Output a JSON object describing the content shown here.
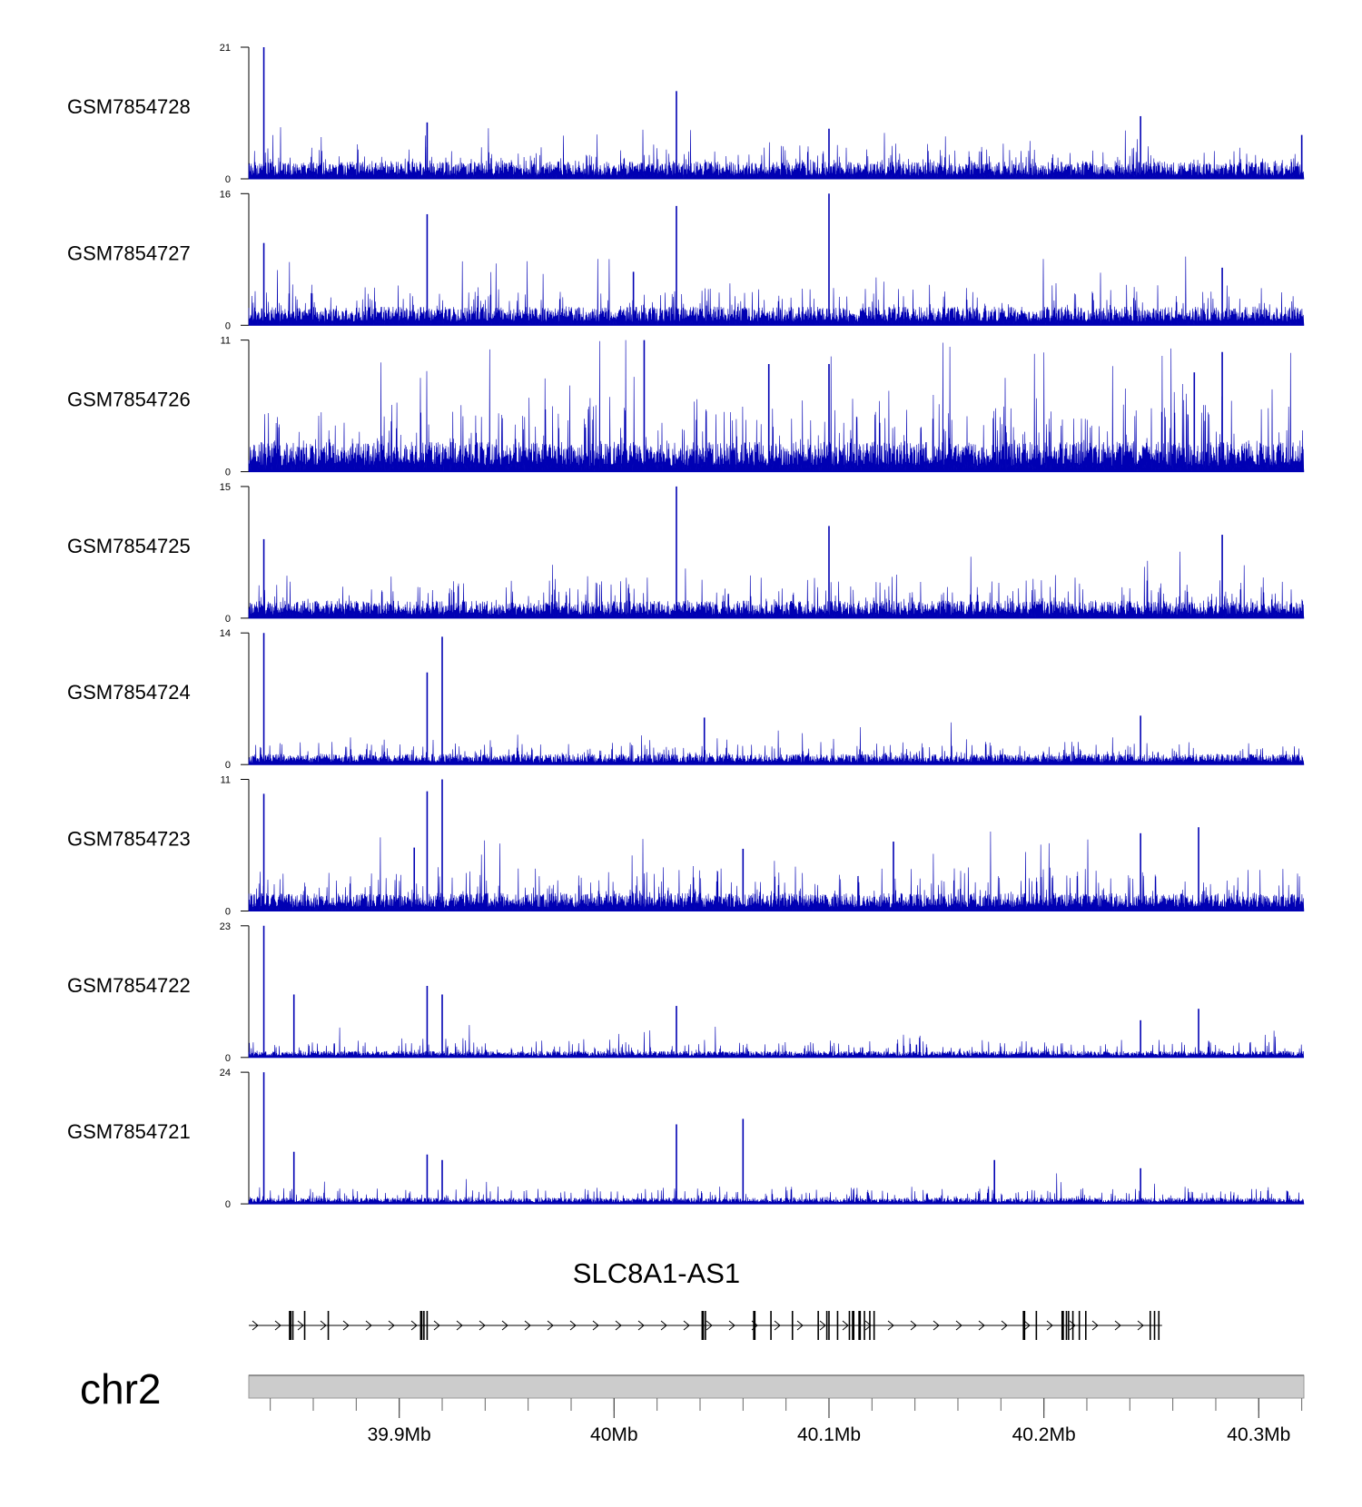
{
  "chart_data": {
    "type": "genome-browser-coverage",
    "chromosome": "chr2",
    "region": {
      "start_mb": 39.83,
      "end_mb": 40.321
    },
    "x_ticks": [
      {
        "value_mb": 39.9,
        "label": "39.9Mb"
      },
      {
        "value_mb": 40.0,
        "label": "40Mb"
      },
      {
        "value_mb": 40.1,
        "label": "40.1Mb"
      },
      {
        "value_mb": 40.2,
        "label": "40.2Mb"
      },
      {
        "value_mb": 40.3,
        "label": "40.3Mb"
      }
    ],
    "minor_tick_step_mb": 0.02,
    "series_color": "#0000B3",
    "tracks": [
      {
        "name": "GSM7854728",
        "ymin": 0,
        "ymax": 21,
        "ymin_label": "0",
        "ymax_label": "21",
        "baseline": 2.2,
        "noise": 3.0,
        "peaks": [
          [
            39.837,
            21
          ],
          [
            39.913,
            9
          ],
          [
            40.029,
            14
          ],
          [
            40.1,
            8
          ],
          [
            40.245,
            10
          ],
          [
            40.32,
            7
          ]
        ]
      },
      {
        "name": "GSM7854727",
        "ymin": 0,
        "ymax": 16,
        "ymin_label": "0",
        "ymax_label": "16",
        "baseline": 1.8,
        "noise": 3.0,
        "peaks": [
          [
            39.837,
            10
          ],
          [
            39.913,
            13.5
          ],
          [
            40.009,
            6.5
          ],
          [
            40.029,
            14.5
          ],
          [
            40.1,
            16
          ],
          [
            40.283,
            7
          ]
        ]
      },
      {
        "name": "GSM7854726",
        "ymin": 0,
        "ymax": 11,
        "ymin_label": "0",
        "ymax_label": "11",
        "baseline": 2.0,
        "noise": 4.2,
        "peaks": [
          [
            40.014,
            11
          ],
          [
            40.072,
            9
          ],
          [
            40.1,
            9
          ],
          [
            40.283,
            10
          ],
          [
            40.27,
            8.3
          ]
        ]
      },
      {
        "name": "GSM7854725",
        "ymin": 0,
        "ymax": 15,
        "ymin_label": "0",
        "ymax_label": "15",
        "baseline": 1.6,
        "noise": 3.0,
        "peaks": [
          [
            40.029,
            15
          ],
          [
            40.1,
            10.5
          ],
          [
            40.283,
            9.5
          ],
          [
            39.837,
            9
          ]
        ]
      },
      {
        "name": "GSM7854724",
        "ymin": 0,
        "ymax": 14,
        "ymin_label": "0",
        "ymax_label": "14",
        "baseline": 0.9,
        "noise": 1.6,
        "peaks": [
          [
            39.837,
            14
          ],
          [
            39.913,
            9.8
          ],
          [
            39.92,
            13.6
          ],
          [
            40.042,
            5
          ],
          [
            40.245,
            5.2
          ]
        ]
      },
      {
        "name": "GSM7854723",
        "ymin": 0,
        "ymax": 11,
        "ymin_label": "0",
        "ymax_label": "11",
        "baseline": 1.2,
        "noise": 2.4,
        "peaks": [
          [
            39.837,
            9.8
          ],
          [
            39.913,
            10
          ],
          [
            39.92,
            11
          ],
          [
            39.907,
            5.3
          ],
          [
            40.06,
            5.2
          ],
          [
            40.13,
            5.8
          ],
          [
            40.245,
            6.5
          ],
          [
            40.272,
            7
          ]
        ]
      },
      {
        "name": "GSM7854722",
        "ymin": 0,
        "ymax": 23,
        "ymin_label": "0",
        "ymax_label": "23",
        "baseline": 0.9,
        "noise": 2.2,
        "peaks": [
          [
            39.837,
            23
          ],
          [
            39.851,
            11
          ],
          [
            39.913,
            12.5
          ],
          [
            39.92,
            11
          ],
          [
            40.029,
            9
          ],
          [
            40.245,
            6.5
          ],
          [
            40.272,
            8.5
          ]
        ]
      },
      {
        "name": "GSM7854721",
        "ymin": 0,
        "ymax": 24,
        "ymin_label": "0",
        "ymax_label": "24",
        "baseline": 0.9,
        "noise": 2.2,
        "peaks": [
          [
            39.837,
            24
          ],
          [
            39.851,
            9.5
          ],
          [
            39.913,
            9
          ],
          [
            39.92,
            8
          ],
          [
            40.029,
            14.5
          ],
          [
            40.06,
            15.5
          ],
          [
            40.177,
            8
          ],
          [
            40.245,
            6.5
          ]
        ]
      }
    ],
    "gene": {
      "name": "SLC8A1-AS1",
      "start_mb": 39.83,
      "end_mb": 40.255,
      "strand": "+",
      "exons_mb": [
        39.849,
        39.8495,
        39.8505,
        39.856,
        39.867,
        39.91,
        39.9105,
        39.9115,
        39.913,
        40.041,
        40.0415,
        40.0425,
        40.065,
        40.0655,
        40.073,
        40.083,
        40.095,
        40.099,
        40.1,
        40.104,
        40.1095,
        40.111,
        40.1115,
        40.114,
        40.1145,
        40.1165,
        40.119,
        40.121,
        40.1905,
        40.191,
        40.1965,
        40.2085,
        40.209,
        40.2105,
        40.2115,
        40.2135,
        40.2165,
        40.2195,
        40.2495,
        40.2515,
        40.2535
      ]
    }
  }
}
